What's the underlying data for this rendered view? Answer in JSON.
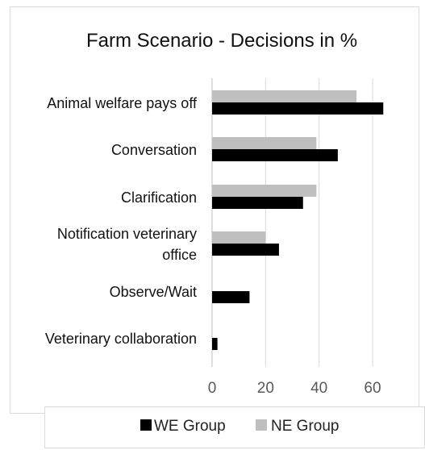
{
  "chart_data": {
    "type": "bar",
    "orientation": "horizontal",
    "title": "Farm Scenario - Decisions in %",
    "xlabel": "",
    "ylabel": "",
    "categories": [
      "Animal welfare pays off",
      "Conversation",
      "Clarification",
      "Notification veterinary office",
      "Observe/Wait",
      "Veterinary collaboration"
    ],
    "category_lines": [
      [
        "Animal welfare pays off"
      ],
      [
        "Conversation"
      ],
      [
        "Clarification"
      ],
      [
        "Notification veterinary",
        "office"
      ],
      [
        "Observe/Wait"
      ],
      [
        "Veterinary collaboration"
      ]
    ],
    "series": [
      {
        "name": "WE Group",
        "color": "#000000",
        "values": [
          64,
          47,
          34,
          25,
          14,
          2
        ]
      },
      {
        "name": "NE Group",
        "color": "#bfbfbf",
        "values": [
          54,
          39,
          39,
          20,
          0,
          0
        ]
      }
    ],
    "xlim": [
      0,
      70
    ],
    "xticks": [
      0,
      20,
      40,
      60
    ],
    "grid": true,
    "legend_position": "bottom"
  }
}
